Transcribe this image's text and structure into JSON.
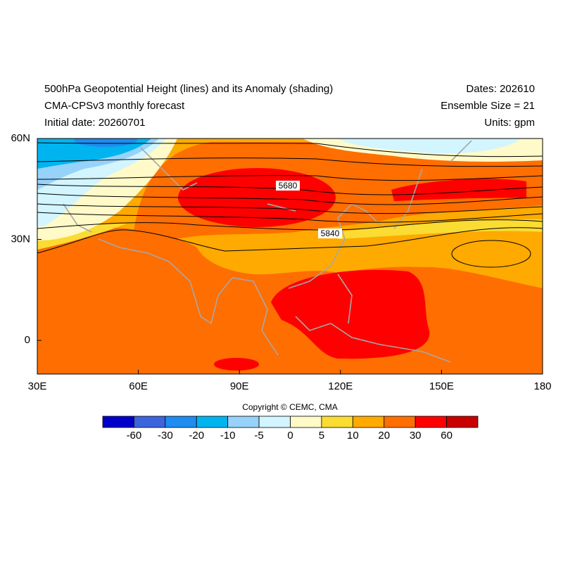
{
  "header": {
    "title": "500hPa Geopotential Height (lines) and its Anomaly (shading)",
    "model": "CMA-CPSv3 monthly forecast",
    "initial_date": "Initial date: 20260701",
    "dates": "Dates: 202610",
    "ensemble": "Ensemble Size = 21",
    "units": "Units: gpm"
  },
  "map": {
    "lon_range": [
      30,
      180
    ],
    "lat_range": [
      -10,
      60
    ],
    "lon_ticks": [
      {
        "value": 30,
        "label": "30E"
      },
      {
        "value": 60,
        "label": "60E"
      },
      {
        "value": 90,
        "label": "90E"
      },
      {
        "value": 120,
        "label": "120E"
      },
      {
        "value": 150,
        "label": "150E"
      },
      {
        "value": 180,
        "label": "180"
      }
    ],
    "lat_ticks": [
      {
        "value": 60,
        "label": "60N"
      },
      {
        "value": 30,
        "label": "30N"
      },
      0
    ],
    "contour_labels": [
      "5680",
      "5840"
    ]
  },
  "colorbar": {
    "colors": [
      "#0000c8",
      "#3c64dc",
      "#1e8cf0",
      "#00b4f0",
      "#96d2fa",
      "#d2f5ff",
      "#fffac8",
      "#fadc32",
      "#ffaa00",
      "#ff6e00",
      "#ff0000",
      "#c80000"
    ],
    "labels": [
      -60,
      -30,
      -20,
      -10,
      -5,
      0,
      5,
      10,
      20,
      30,
      60
    ]
  },
  "copyright": "Copyright © CEMC, CMA"
}
